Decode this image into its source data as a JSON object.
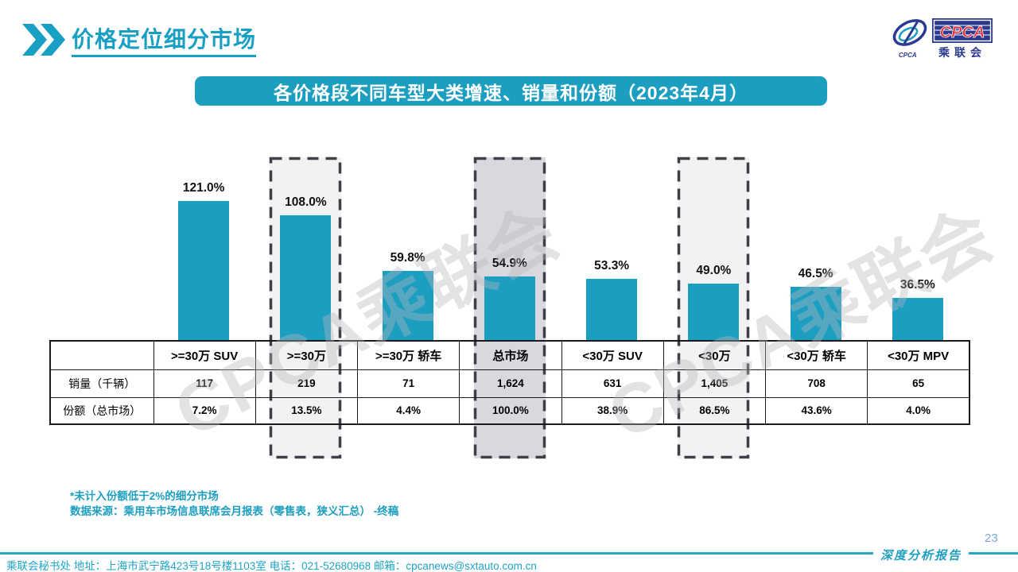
{
  "page": {
    "title": "价格定位细分市场",
    "report_label": "深度分析报告",
    "page_number": "23"
  },
  "logo": {
    "cpca": "CPCA",
    "chinese": "乘联会",
    "sub_label": "CPCA"
  },
  "chart_header": "各价格段不同车型大类增速、销量和份额（2023年4月）",
  "watermark": "CPCA乘联会",
  "chart_data": {
    "type": "bar",
    "title": "各价格段不同车型大类增速、销量和份额（2023年4月）",
    "categories": [
      ">=30万 SUV",
      ">=30万",
      ">=30万 轿车",
      "总市场",
      "<30万 SUV",
      "<30万",
      "<30万 轿车",
      "<30万 MPV"
    ],
    "values": [
      121.0,
      108.0,
      59.8,
      54.9,
      53.3,
      49.0,
      46.5,
      36.5
    ],
    "labels": [
      "121.0%",
      "108.0%",
      "59.8%",
      "54.9%",
      "53.3%",
      "49.0%",
      "46.5%",
      "36.5%"
    ],
    "ylim": [
      0,
      135
    ],
    "grid": false,
    "legend": "none",
    "bar_color": "#1C9EC1",
    "highlight_indices": [
      1,
      3,
      5
    ],
    "highlight_colors": {
      "1": "#F2F2F2",
      "3": "#D8D8DE",
      "5": "#F2F2F2"
    },
    "highlight_border_color": "#3F3F4A",
    "table": {
      "row_headers": [
        "销量（千辆）",
        "份额（总市场）"
      ],
      "series": [
        {
          "name": "销量（千辆）",
          "values": [
            "117",
            "219",
            "71",
            "1,624",
            "631",
            "1,405",
            "708",
            "65"
          ]
        },
        {
          "name": "份额（总市场）",
          "values": [
            "7.2%",
            "13.5%",
            "4.4%",
            "100.0%",
            "38.9%",
            "86.5%",
            "43.6%",
            "4.0%"
          ]
        }
      ]
    }
  },
  "footnotes": [
    "*未计入份额低于2%的细分市场",
    "数据来源：乘用车市场信息联席会月报表（零售表，狭义汇总） -终稿"
  ],
  "footer": {
    "text": "乘联会秘书处   地址：上海市武宁路423号18号楼1103室  电话：021-52680968   邮箱：cpcanews@sxtauto.com.cn"
  }
}
